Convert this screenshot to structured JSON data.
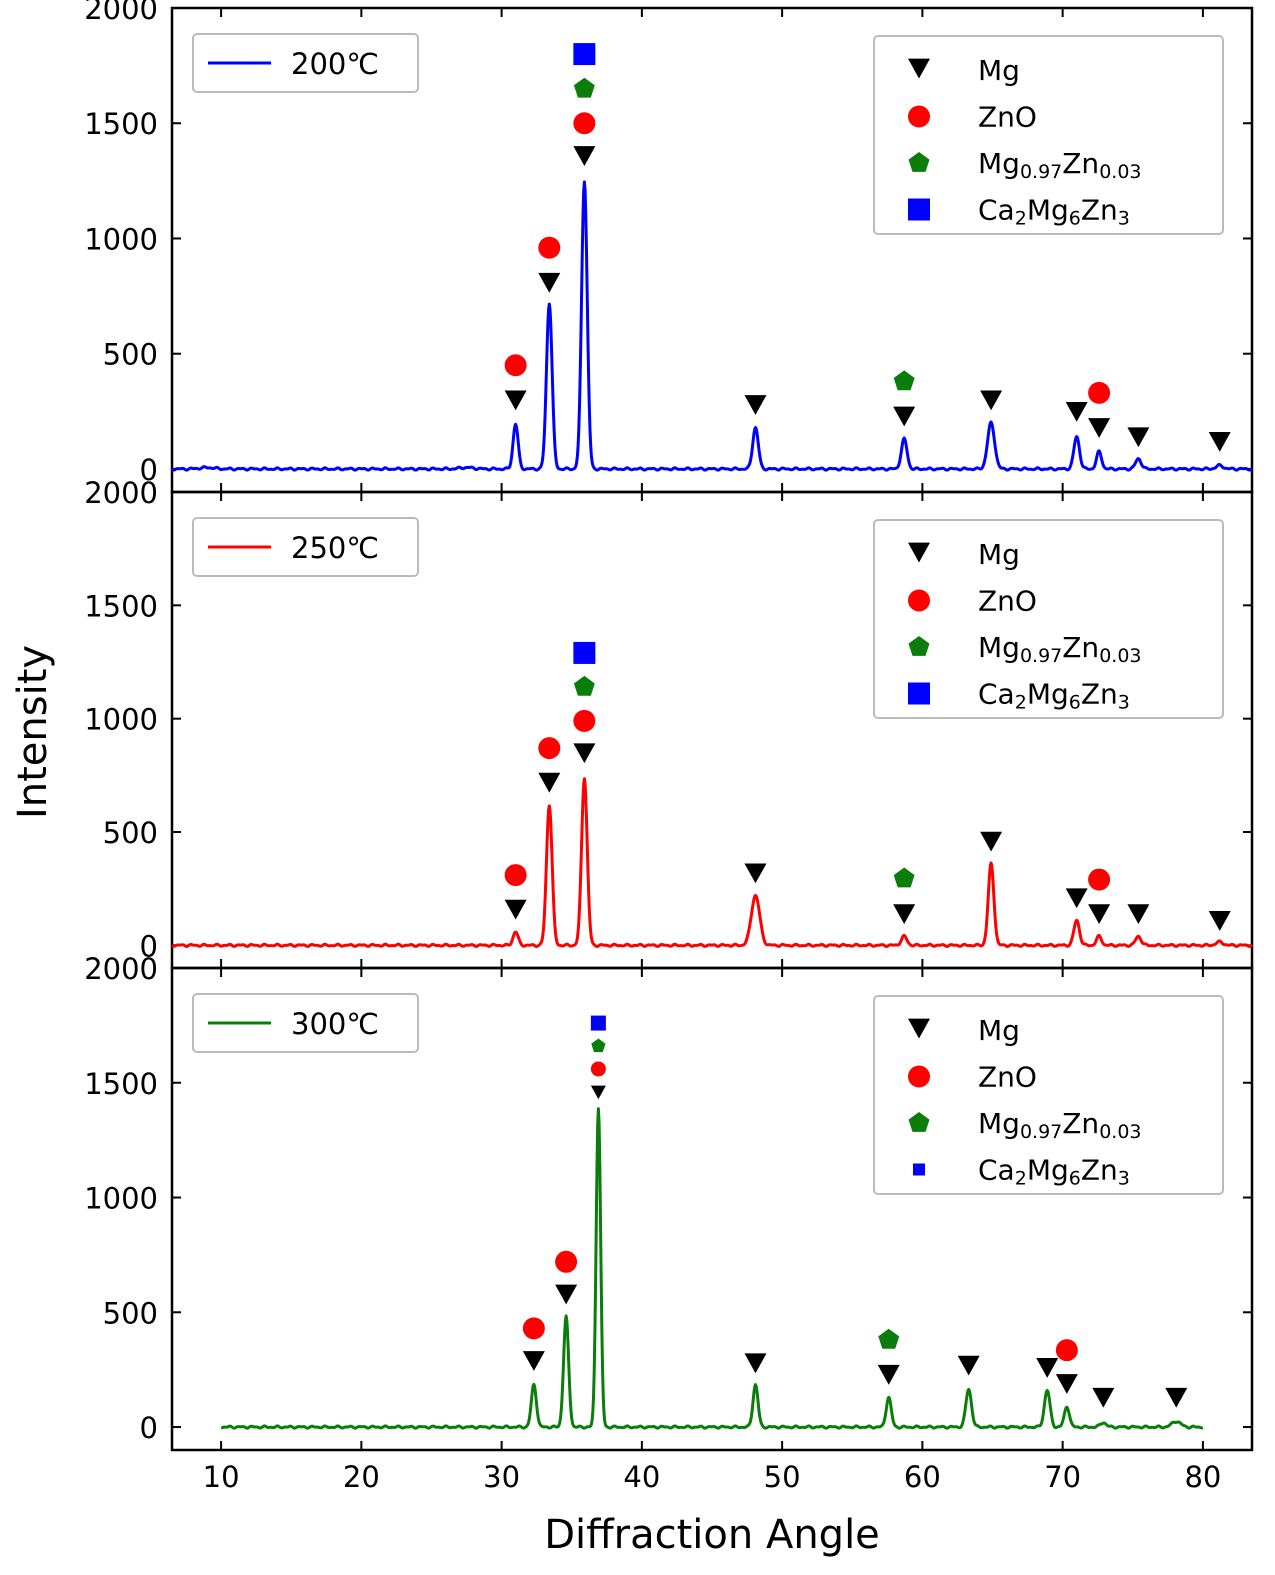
{
  "chart_data": {
    "type": "line",
    "xlabel": "Diffraction Angle",
    "ylabel": "Intensity",
    "xlim": [
      6.5,
      83.5
    ],
    "xticks": [
      10,
      20,
      30,
      40,
      50,
      60,
      70,
      80
    ],
    "ylim": [
      -100,
      2000
    ],
    "yticks": [
      0,
      500,
      1000,
      1500,
      2000
    ],
    "legend_phases": [
      {
        "key": "mg",
        "label": "Mg",
        "marker": "triangle-down",
        "color": "#000000"
      },
      {
        "key": "zno",
        "label": "ZnO",
        "marker": "circle",
        "color": "#ff0000"
      },
      {
        "key": "mgzn",
        "label_parts": [
          [
            "Mg",
            ""
          ],
          [
            "0.97",
            "sub"
          ],
          [
            "Zn",
            ""
          ],
          [
            "0.03",
            "sub"
          ]
        ],
        "marker": "pentagon",
        "color": "#0a7d0a"
      },
      {
        "key": "camgzn",
        "label_parts": [
          [
            "Ca",
            ""
          ],
          [
            "2",
            "sub"
          ],
          [
            "Mg",
            ""
          ],
          [
            "6",
            "sub"
          ],
          [
            "Zn",
            ""
          ],
          [
            "3",
            "sub"
          ]
        ],
        "marker": "square",
        "color": "#0000ff"
      }
    ],
    "panels": [
      {
        "name": "200",
        "legend_label": "200℃",
        "color": "#0000ff",
        "x_range": [
          6.5,
          83.5
        ],
        "noise": [
          [
            9,
            6
          ],
          [
            27.5,
            6
          ]
        ],
        "peaks": [
          [
            31.0,
            195,
            0.18
          ],
          [
            33.4,
            720,
            0.2
          ],
          [
            35.9,
            1250,
            0.2
          ],
          [
            48.1,
            180,
            0.2
          ],
          [
            58.7,
            130,
            0.2
          ],
          [
            64.9,
            200,
            0.25
          ],
          [
            71.0,
            140,
            0.2
          ],
          [
            72.6,
            75,
            0.18
          ],
          [
            75.4,
            45,
            0.2
          ],
          [
            81.2,
            15,
            0.25
          ]
        ],
        "annotations": [
          {
            "x": 31.0,
            "marks": [
              [
                "mg",
                300
              ],
              [
                "zno",
                450
              ]
            ]
          },
          {
            "x": 33.4,
            "marks": [
              [
                "mg",
                810
              ],
              [
                "zno",
                960
              ]
            ]
          },
          {
            "x": 35.9,
            "marks": [
              [
                "mg",
                1360
              ],
              [
                "zno",
                1500
              ],
              [
                "mgzn",
                1650
              ],
              [
                "camgzn",
                1800
              ]
            ]
          },
          {
            "x": 48.1,
            "marks": [
              [
                "mg",
                280
              ]
            ]
          },
          {
            "x": 58.7,
            "marks": [
              [
                "mg",
                230
              ],
              [
                "mgzn",
                380
              ]
            ]
          },
          {
            "x": 64.9,
            "marks": [
              [
                "mg",
                300
              ]
            ]
          },
          {
            "x": 71.0,
            "marks": [
              [
                "mg",
                250
              ]
            ]
          },
          {
            "x": 72.6,
            "marks": [
              [
                "mg",
                180
              ],
              [
                "zno",
                330
              ]
            ]
          },
          {
            "x": 75.4,
            "marks": [
              [
                "mg",
                140
              ]
            ]
          },
          {
            "x": 81.2,
            "marks": [
              [
                "mg",
                120
              ]
            ]
          }
        ]
      },
      {
        "name": "250",
        "legend_label": "250℃",
        "color": "#ff0000",
        "x_range": [
          6.5,
          83.5
        ],
        "noise": [],
        "peaks": [
          [
            31.0,
            60,
            0.18
          ],
          [
            33.4,
            620,
            0.2
          ],
          [
            35.9,
            740,
            0.2
          ],
          [
            48.1,
            220,
            0.3
          ],
          [
            58.7,
            40,
            0.2
          ],
          [
            64.9,
            360,
            0.2
          ],
          [
            71.0,
            110,
            0.2
          ],
          [
            72.6,
            40,
            0.18
          ],
          [
            75.4,
            40,
            0.2
          ],
          [
            81.2,
            15,
            0.25
          ]
        ],
        "annotations": [
          {
            "x": 31.0,
            "marks": [
              [
                "mg",
                160
              ],
              [
                "zno",
                310
              ]
            ]
          },
          {
            "x": 33.4,
            "marks": [
              [
                "mg",
                720
              ],
              [
                "zno",
                870
              ]
            ]
          },
          {
            "x": 35.9,
            "marks": [
              [
                "mg",
                850
              ],
              [
                "zno",
                990
              ],
              [
                "mgzn",
                1140
              ],
              [
                "camgzn",
                1290
              ]
            ]
          },
          {
            "x": 48.1,
            "marks": [
              [
                "mg",
                320
              ]
            ]
          },
          {
            "x": 58.7,
            "marks": [
              [
                "mg",
                140
              ],
              [
                "mgzn",
                295
              ]
            ]
          },
          {
            "x": 64.9,
            "marks": [
              [
                "mg",
                460
              ]
            ]
          },
          {
            "x": 71.0,
            "marks": [
              [
                "mg",
                210
              ]
            ]
          },
          {
            "x": 72.6,
            "marks": [
              [
                "mg",
                140
              ],
              [
                "zno",
                290
              ]
            ]
          },
          {
            "x": 75.4,
            "marks": [
              [
                "mg",
                140
              ]
            ]
          },
          {
            "x": 81.2,
            "marks": [
              [
                "mg",
                110
              ]
            ]
          }
        ]
      },
      {
        "name": "300",
        "legend_label": "300℃",
        "color": "#0a7d0a",
        "x_range": [
          10,
          80
        ],
        "noise": [],
        "peaks": [
          [
            32.3,
            185,
            0.18
          ],
          [
            34.6,
            480,
            0.18
          ],
          [
            36.9,
            1390,
            0.16
          ],
          [
            48.1,
            185,
            0.18
          ],
          [
            57.6,
            130,
            0.18
          ],
          [
            63.3,
            165,
            0.2
          ],
          [
            68.9,
            160,
            0.2
          ],
          [
            70.3,
            90,
            0.18
          ],
          [
            72.9,
            20,
            0.2
          ],
          [
            78.1,
            25,
            0.3
          ]
        ],
        "annotations": [
          {
            "x": 32.3,
            "marks": [
              [
                "mg",
                290
              ],
              [
                "zno",
                430
              ]
            ]
          },
          {
            "x": 34.6,
            "marks": [
              [
                "mg",
                580
              ],
              [
                "zno",
                720
              ]
            ]
          },
          {
            "x": 36.9,
            "marks": [
              [
                "mg",
                1460
              ],
              [
                "zno",
                1560
              ],
              [
                "mgzn",
                1660
              ],
              [
                "camgzn",
                1760
              ]
            ]
          },
          {
            "x": 48.1,
            "marks": [
              [
                "mg",
                280
              ]
            ]
          },
          {
            "x": 57.6,
            "marks": [
              [
                "mg",
                230
              ],
              [
                "mgzn",
                380
              ]
            ]
          },
          {
            "x": 63.3,
            "marks": [
              [
                "mg",
                270
              ]
            ]
          },
          {
            "x": 68.9,
            "marks": [
              [
                "mg",
                260
              ]
            ]
          },
          {
            "x": 70.3,
            "marks": [
              [
                "mg",
                190
              ],
              [
                "zno",
                335
              ]
            ]
          },
          {
            "x": 72.9,
            "marks": [
              [
                "mg",
                130
              ]
            ]
          },
          {
            "x": 78.1,
            "marks": [
              [
                "mg",
                130
              ]
            ]
          }
        ]
      }
    ]
  }
}
